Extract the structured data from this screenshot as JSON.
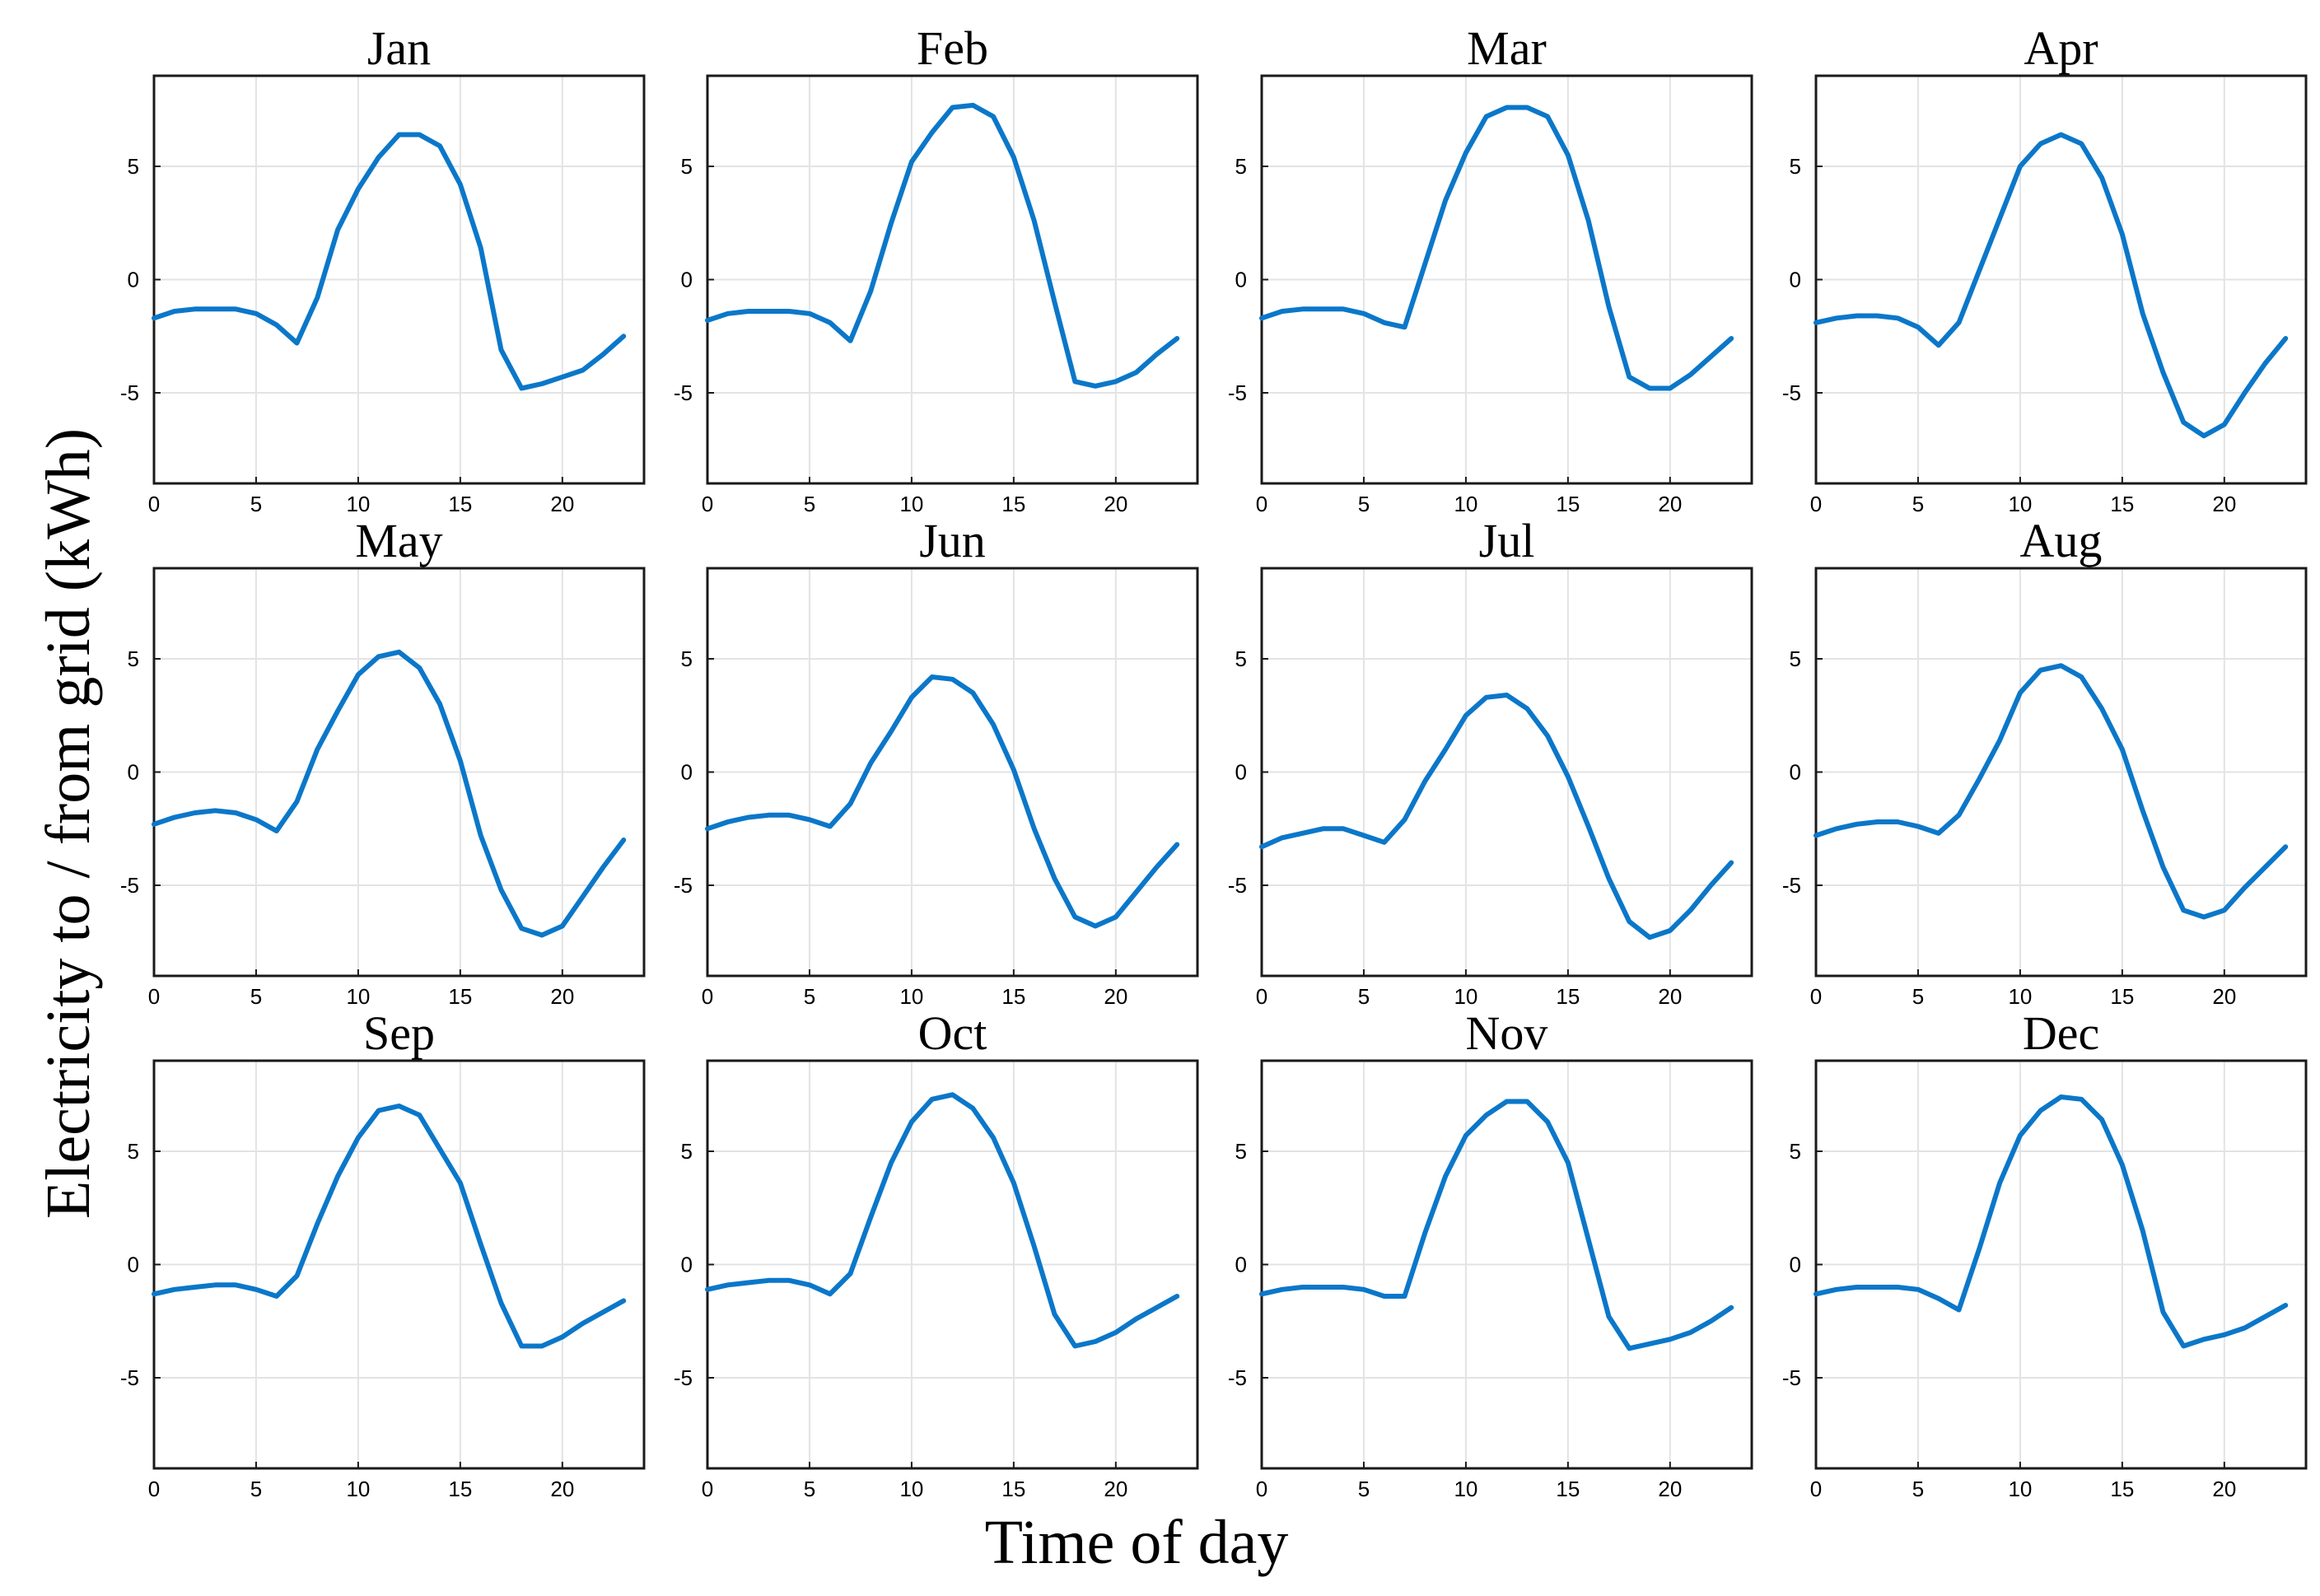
{
  "figure": {
    "xlabel": "Time of day",
    "ylabel": "Electricity to / from grid (kWh)",
    "line_color": "#0b77c9"
  },
  "chart_data": [
    {
      "type": "line",
      "title": "Jan",
      "xlim": [
        0,
        24
      ],
      "ylim": [
        -9,
        9
      ],
      "xticks": [
        0,
        5,
        10,
        15,
        20
      ],
      "yticks": [
        -5,
        0,
        5
      ],
      "x": [
        0,
        1,
        2,
        3,
        4,
        5,
        6,
        7,
        8,
        9,
        10,
        11,
        12,
        13,
        14,
        15,
        16,
        17,
        18,
        19,
        20,
        21,
        22,
        23
      ],
      "values": [
        -1.7,
        -1.4,
        -1.3,
        -1.3,
        -1.3,
        -1.5,
        -2.0,
        -2.8,
        -0.8,
        2.2,
        4.0,
        5.4,
        6.4,
        6.4,
        5.9,
        4.2,
        1.4,
        -3.1,
        -4.8,
        -4.6,
        -4.3,
        -4.0,
        -3.3,
        -2.5
      ]
    },
    {
      "type": "line",
      "title": "Feb",
      "xlim": [
        0,
        24
      ],
      "ylim": [
        -9,
        9
      ],
      "xticks": [
        0,
        5,
        10,
        15,
        20
      ],
      "yticks": [
        -5,
        0,
        5
      ],
      "x": [
        0,
        1,
        2,
        3,
        4,
        5,
        6,
        7,
        8,
        9,
        10,
        11,
        12,
        13,
        14,
        15,
        16,
        17,
        18,
        19,
        20,
        21,
        22,
        23
      ],
      "values": [
        -1.8,
        -1.5,
        -1.4,
        -1.4,
        -1.4,
        -1.5,
        -1.9,
        -2.7,
        -0.5,
        2.5,
        5.2,
        6.5,
        7.6,
        7.7,
        7.2,
        5.4,
        2.6,
        -1.0,
        -4.5,
        -4.7,
        -4.5,
        -4.1,
        -3.3,
        -2.6
      ]
    },
    {
      "type": "line",
      "title": "Mar",
      "xlim": [
        0,
        24
      ],
      "ylim": [
        -9,
        9
      ],
      "xticks": [
        0,
        5,
        10,
        15,
        20
      ],
      "yticks": [
        -5,
        0,
        5
      ],
      "x": [
        0,
        1,
        2,
        3,
        4,
        5,
        6,
        7,
        8,
        9,
        10,
        11,
        12,
        13,
        14,
        15,
        16,
        17,
        18,
        19,
        20,
        21,
        22,
        23
      ],
      "values": [
        -1.7,
        -1.4,
        -1.3,
        -1.3,
        -1.3,
        -1.5,
        -1.9,
        -2.1,
        0.7,
        3.5,
        5.6,
        7.2,
        7.6,
        7.6,
        7.2,
        5.5,
        2.6,
        -1.2,
        -4.3,
        -4.8,
        -4.8,
        -4.2,
        -3.4,
        -2.6
      ]
    },
    {
      "type": "line",
      "title": "Apr",
      "xlim": [
        0,
        24
      ],
      "ylim": [
        -9,
        9
      ],
      "xticks": [
        0,
        5,
        10,
        15,
        20
      ],
      "yticks": [
        -5,
        0,
        5
      ],
      "x": [
        0,
        1,
        2,
        3,
        4,
        5,
        6,
        7,
        8,
        9,
        10,
        11,
        12,
        13,
        14,
        15,
        16,
        17,
        18,
        19,
        20,
        21,
        22,
        23
      ],
      "values": [
        -1.9,
        -1.7,
        -1.6,
        -1.6,
        -1.7,
        -2.1,
        -2.9,
        -1.9,
        0.4,
        2.7,
        5.0,
        6.0,
        6.4,
        6.0,
        4.5,
        2.0,
        -1.5,
        -4.1,
        -6.3,
        -6.9,
        -6.4,
        -5.0,
        -3.7,
        -2.6
      ]
    },
    {
      "type": "line",
      "title": "May",
      "xlim": [
        0,
        24
      ],
      "ylim": [
        -9,
        9
      ],
      "xticks": [
        0,
        5,
        10,
        15,
        20
      ],
      "yticks": [
        -5,
        0,
        5
      ],
      "x": [
        0,
        1,
        2,
        3,
        4,
        5,
        6,
        7,
        8,
        9,
        10,
        11,
        12,
        13,
        14,
        15,
        16,
        17,
        18,
        19,
        20,
        21,
        22,
        23
      ],
      "values": [
        -2.3,
        -2.0,
        -1.8,
        -1.7,
        -1.8,
        -2.1,
        -2.6,
        -1.3,
        1.0,
        2.7,
        4.3,
        5.1,
        5.3,
        4.6,
        3.0,
        0.5,
        -2.8,
        -5.2,
        -6.9,
        -7.2,
        -6.8,
        -5.5,
        -4.2,
        -3.0
      ]
    },
    {
      "type": "line",
      "title": "Jun",
      "xlim": [
        0,
        24
      ],
      "ylim": [
        -9,
        9
      ],
      "xticks": [
        0,
        5,
        10,
        15,
        20
      ],
      "yticks": [
        -5,
        0,
        5
      ],
      "x": [
        0,
        1,
        2,
        3,
        4,
        5,
        6,
        7,
        8,
        9,
        10,
        11,
        12,
        13,
        14,
        15,
        16,
        17,
        18,
        19,
        20,
        21,
        22,
        23
      ],
      "values": [
        -2.5,
        -2.2,
        -2.0,
        -1.9,
        -1.9,
        -2.1,
        -2.4,
        -1.4,
        0.4,
        1.8,
        3.3,
        4.2,
        4.1,
        3.5,
        2.1,
        0.1,
        -2.5,
        -4.7,
        -6.4,
        -6.8,
        -6.4,
        -5.3,
        -4.2,
        -3.2
      ]
    },
    {
      "type": "line",
      "title": "Jul",
      "xlim": [
        0,
        24
      ],
      "ylim": [
        -9,
        9
      ],
      "xticks": [
        0,
        5,
        10,
        15,
        20
      ],
      "yticks": [
        -5,
        0,
        5
      ],
      "x": [
        0,
        1,
        2,
        3,
        4,
        5,
        6,
        7,
        8,
        9,
        10,
        11,
        12,
        13,
        14,
        15,
        16,
        17,
        18,
        19,
        20,
        21,
        22,
        23
      ],
      "values": [
        -3.3,
        -2.9,
        -2.7,
        -2.5,
        -2.5,
        -2.8,
        -3.1,
        -2.1,
        -0.4,
        1.0,
        2.5,
        3.3,
        3.4,
        2.8,
        1.6,
        -0.2,
        -2.4,
        -4.7,
        -6.6,
        -7.3,
        -7.0,
        -6.1,
        -5.0,
        -4.0
      ]
    },
    {
      "type": "line",
      "title": "Aug",
      "xlim": [
        0,
        24
      ],
      "ylim": [
        -9,
        9
      ],
      "xticks": [
        0,
        5,
        10,
        15,
        20
      ],
      "yticks": [
        -5,
        0,
        5
      ],
      "x": [
        0,
        1,
        2,
        3,
        4,
        5,
        6,
        7,
        8,
        9,
        10,
        11,
        12,
        13,
        14,
        15,
        16,
        17,
        18,
        19,
        20,
        21,
        22,
        23
      ],
      "values": [
        -2.8,
        -2.5,
        -2.3,
        -2.2,
        -2.2,
        -2.4,
        -2.7,
        -1.9,
        -0.3,
        1.4,
        3.5,
        4.5,
        4.7,
        4.2,
        2.8,
        1.0,
        -1.7,
        -4.2,
        -6.1,
        -6.4,
        -6.1,
        -5.1,
        -4.2,
        -3.3
      ]
    },
    {
      "type": "line",
      "title": "Sep",
      "xlim": [
        0,
        24
      ],
      "ylim": [
        -9,
        9
      ],
      "xticks": [
        0,
        5,
        10,
        15,
        20
      ],
      "yticks": [
        -5,
        0,
        5
      ],
      "x": [
        0,
        1,
        2,
        3,
        4,
        5,
        6,
        7,
        8,
        9,
        10,
        11,
        12,
        13,
        14,
        15,
        16,
        17,
        18,
        19,
        20,
        21,
        22,
        23
      ],
      "values": [
        -1.3,
        -1.1,
        -1.0,
        -0.9,
        -0.9,
        -1.1,
        -1.4,
        -0.5,
        1.8,
        3.9,
        5.6,
        6.8,
        7.0,
        6.6,
        5.1,
        3.6,
        0.9,
        -1.7,
        -3.6,
        -3.6,
        -3.2,
        -2.6,
        -2.1,
        -1.6
      ]
    },
    {
      "type": "line",
      "title": "Oct",
      "xlim": [
        0,
        24
      ],
      "ylim": [
        -9,
        9
      ],
      "xticks": [
        0,
        5,
        10,
        15,
        20
      ],
      "yticks": [
        -5,
        0,
        5
      ],
      "x": [
        0,
        1,
        2,
        3,
        4,
        5,
        6,
        7,
        8,
        9,
        10,
        11,
        12,
        13,
        14,
        15,
        16,
        17,
        18,
        19,
        20,
        21,
        22,
        23
      ],
      "values": [
        -1.1,
        -0.9,
        -0.8,
        -0.7,
        -0.7,
        -0.9,
        -1.3,
        -0.4,
        2.1,
        4.5,
        6.3,
        7.3,
        7.5,
        6.9,
        5.6,
        3.6,
        0.8,
        -2.2,
        -3.6,
        -3.4,
        -3.0,
        -2.4,
        -1.9,
        -1.4
      ]
    },
    {
      "type": "line",
      "title": "Nov",
      "xlim": [
        0,
        24
      ],
      "ylim": [
        -9,
        9
      ],
      "xticks": [
        0,
        5,
        10,
        15,
        20
      ],
      "yticks": [
        -5,
        0,
        5
      ],
      "x": [
        0,
        1,
        2,
        3,
        4,
        5,
        6,
        7,
        8,
        9,
        10,
        11,
        12,
        13,
        14,
        15,
        16,
        17,
        18,
        19,
        20,
        21,
        22,
        23
      ],
      "values": [
        -1.3,
        -1.1,
        -1.0,
        -1.0,
        -1.0,
        -1.1,
        -1.4,
        -1.4,
        1.4,
        3.9,
        5.7,
        6.6,
        7.2,
        7.2,
        6.3,
        4.5,
        1.1,
        -2.3,
        -3.7,
        -3.5,
        -3.3,
        -3.0,
        -2.5,
        -1.9
      ]
    },
    {
      "type": "line",
      "title": "Dec",
      "xlim": [
        0,
        24
      ],
      "ylim": [
        -9,
        9
      ],
      "xticks": [
        0,
        5,
        10,
        15,
        20
      ],
      "yticks": [
        -5,
        0,
        5
      ],
      "x": [
        0,
        1,
        2,
        3,
        4,
        5,
        6,
        7,
        8,
        9,
        10,
        11,
        12,
        13,
        14,
        15,
        16,
        17,
        18,
        19,
        20,
        21,
        22,
        23
      ],
      "values": [
        -1.3,
        -1.1,
        -1.0,
        -1.0,
        -1.0,
        -1.1,
        -1.5,
        -2.0,
        0.7,
        3.6,
        5.7,
        6.8,
        7.4,
        7.3,
        6.4,
        4.4,
        1.5,
        -2.1,
        -3.6,
        -3.3,
        -3.1,
        -2.8,
        -2.3,
        -1.8
      ]
    }
  ]
}
